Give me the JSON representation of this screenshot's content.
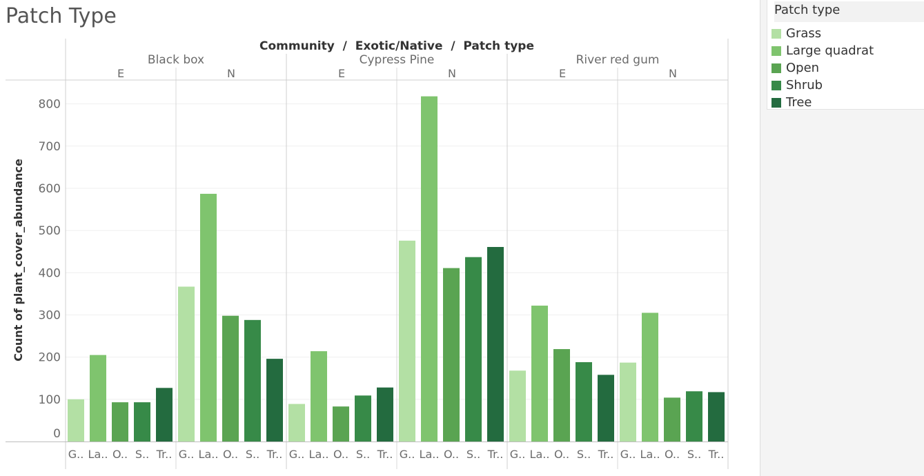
{
  "title": "Patch Type",
  "chart_data": {
    "type": "bar",
    "header_title": "Community  /  Exotic/Native  /  Patch type",
    "ylabel": "Count of plant_cover_abundance",
    "ylim": [
      0,
      850
    ],
    "yticks": [
      0,
      100,
      200,
      300,
      400,
      500,
      600,
      700,
      800
    ],
    "communities": [
      {
        "name": "Black box",
        "groups": [
          {
            "name": "E",
            "values": [
              100,
              205,
              93,
              93,
              127
            ]
          },
          {
            "name": "N",
            "values": [
              367,
              587,
              298,
              288,
              196
            ]
          }
        ]
      },
      {
        "name": "Cypress Pine",
        "groups": [
          {
            "name": "E",
            "values": [
              89,
              214,
              83,
              109,
              128
            ]
          },
          {
            "name": "N",
            "values": [
              476,
              818,
              411,
              437,
              461
            ]
          }
        ]
      },
      {
        "name": "River red gum",
        "groups": [
          {
            "name": "E",
            "values": [
              168,
              322,
              219,
              188,
              158
            ]
          },
          {
            "name": "N",
            "values": [
              187,
              305,
              104,
              119,
              117
            ]
          }
        ]
      }
    ],
    "categories": [
      "Grass",
      "Large quadrat",
      "Open",
      "Shrub",
      "Tree"
    ],
    "category_short": [
      "G..",
      "La..",
      "O..",
      "S..",
      "Tr.."
    ],
    "colors": [
      "#b3e0a4",
      "#7fc46e",
      "#5aa452",
      "#378a48",
      "#236b3f"
    ],
    "legend": {
      "title": "Patch type",
      "position": "top-right",
      "items": [
        "Grass",
        "Large quadrat",
        "Open",
        "Shrub",
        "Tree"
      ]
    },
    "grid": true
  }
}
